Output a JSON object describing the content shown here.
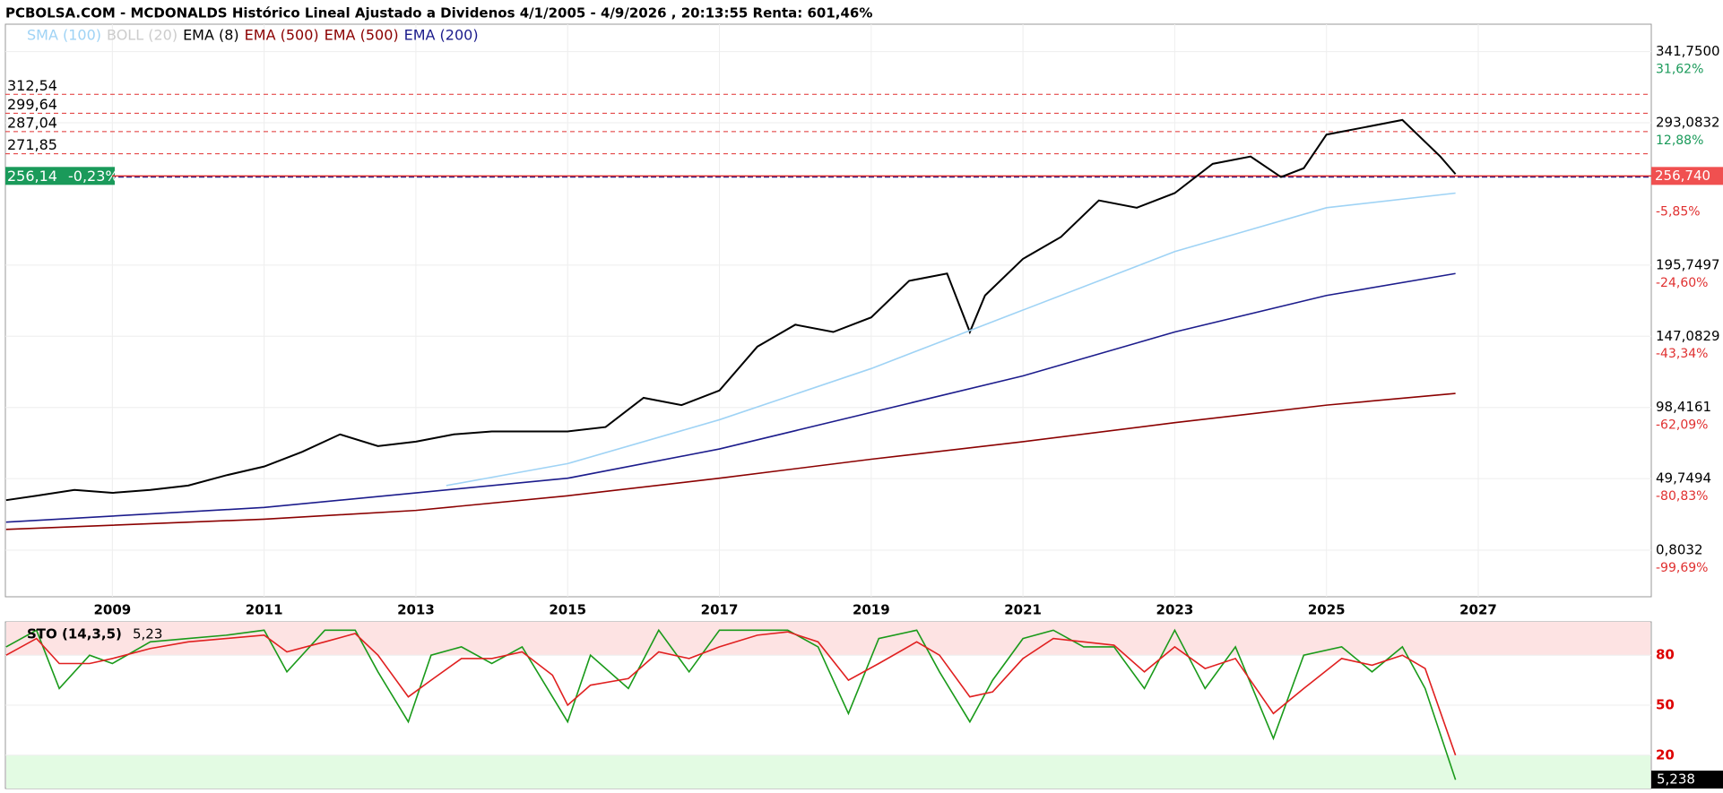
{
  "header": {
    "title": "PCBOLSA.COM - MCDONALDS Histórico Lineal Ajustado a Dividenos 4/1/2005 - 4/9/2026 , 20:13:55 Renta: 601,46%"
  },
  "chart_data": [
    {
      "type": "line",
      "legend": [
        {
          "name": "SMA (100)",
          "color": "#9fd3f5"
        },
        {
          "name": "BOLL (20)",
          "color": "#cccccc"
        },
        {
          "name": "EMA (8)",
          "color": "#000000"
        },
        {
          "name": "EMA (500)",
          "color": "#8b0000"
        },
        {
          "name": "EMA (500)",
          "color": "#8b0000"
        },
        {
          "name": "EMA (200)",
          "color": "#1c1c8c"
        }
      ],
      "xlim": [
        2007.59,
        2029.28
      ],
      "xticks": [
        2009,
        2011,
        2013,
        2015,
        2017,
        2019,
        2021,
        2023,
        2025,
        2027
      ],
      "ylim": [
        -31.06,
        360.5
      ],
      "yticks": [
        {
          "value": 341.75,
          "label": "341,7500"
        },
        {
          "value": 293.0832,
          "label": "293,0832"
        },
        {
          "value": 195.7497,
          "label": "195,7497"
        },
        {
          "value": 147.0829,
          "label": "147,0829"
        },
        {
          "value": 98.4161,
          "label": "98,4161"
        },
        {
          "value": 49.7494,
          "label": "49,7494"
        },
        {
          "value": 0.8032,
          "label": "0,8032"
        }
      ],
      "y2lim": [
        -111.96,
        38.84
      ],
      "y2ticks": [
        {
          "value": 31.62,
          "label": "31,62%"
        },
        {
          "value": 12.88,
          "label": "12,88%"
        },
        {
          "value": -5.85,
          "label": "-5,85%"
        },
        {
          "value": -24.6,
          "label": "-24,60%"
        },
        {
          "value": -43.34,
          "label": "-43,34%"
        },
        {
          "value": -62.09,
          "label": "-62,09%"
        },
        {
          "value": -80.83,
          "label": "-80,83%"
        },
        {
          "value": -99.69,
          "label": "-99,69%"
        }
      ],
      "levels": [
        {
          "value": 312.54,
          "label": "312,54"
        },
        {
          "value": 299.64,
          "label": "299,64"
        },
        {
          "value": 287.04,
          "label": "287,04"
        },
        {
          "value": 271.85,
          "label": "271,85"
        }
      ],
      "last_price": {
        "value": 256.14,
        "label": "256,14",
        "change": "-0,23%"
      },
      "last_right": {
        "value": 256.74,
        "label": "256,740"
      },
      "series": [
        {
          "legend": 2,
          "color": "#000000",
          "x": [
            2007.6,
            2008.0,
            2008.5,
            2009.0,
            2009.5,
            2010.0,
            2010.5,
            2011.0,
            2011.5,
            2012.0,
            2012.5,
            2013.0,
            2013.5,
            2014.0,
            2014.5,
            2015.0,
            2015.5,
            2016.0,
            2016.5,
            2017.0,
            2017.5,
            2018.0,
            2018.5,
            2019.0,
            2019.5,
            2020.0,
            2020.3,
            2020.5,
            2021.0,
            2021.5,
            2022.0,
            2022.5,
            2023.0,
            2023.5,
            2024.0,
            2024.4,
            2024.7,
            2025.0,
            2025.5,
            2026.0,
            2026.5,
            2026.7
          ],
          "values": [
            35,
            38,
            42,
            40,
            42,
            45,
            52,
            58,
            68,
            80,
            72,
            75,
            80,
            82,
            82,
            82,
            85,
            105,
            100,
            110,
            140,
            155,
            150,
            160,
            185,
            190,
            150,
            175,
            200,
            215,
            240,
            235,
            245,
            265,
            270,
            256,
            262,
            285,
            290,
            295,
            270,
            258
          ]
        },
        {
          "legend": 0,
          "color": "#9fd3f5",
          "x": [
            2013.4,
            2015,
            2017,
            2019,
            2021,
            2023,
            2025,
            2026.7
          ],
          "values": [
            45,
            60,
            90,
            125,
            165,
            205,
            235,
            245
          ]
        },
        {
          "legend": 5,
          "color": "#1c1c8c",
          "x": [
            2007.6,
            2011,
            2013,
            2015,
            2017,
            2019,
            2021,
            2023,
            2025,
            2026.7
          ],
          "values": [
            20,
            30,
            40,
            50,
            70,
            95,
            120,
            150,
            175,
            190
          ]
        },
        {
          "legend": 3,
          "color": "#8b0000",
          "x": [
            2007.6,
            2011,
            2013,
            2015,
            2017,
            2019,
            2021,
            2023,
            2025,
            2026.7
          ],
          "values": [
            15,
            22,
            28,
            38,
            50,
            63,
            75,
            88,
            100,
            108
          ]
        }
      ]
    },
    {
      "type": "line",
      "title": "STO (14,3,5)",
      "last_label": "5,23",
      "last_axis_label": "5,238",
      "xlim": [
        2007.59,
        2029.28
      ],
      "ylim": [
        0,
        100
      ],
      "yticks": [
        20,
        50,
        80
      ],
      "bands": [
        {
          "from": 80,
          "to": 100,
          "color": "#fde3e3"
        },
        {
          "from": 0,
          "to": 20,
          "color": "#e3fbe3"
        }
      ],
      "x": [
        2007.6,
        2008.0,
        2008.3,
        2008.7,
        2009.0,
        2009.5,
        2010.0,
        2010.5,
        2011.0,
        2011.3,
        2011.8,
        2012.2,
        2012.5,
        2012.9,
        2013.2,
        2013.6,
        2014.0,
        2014.4,
        2014.8,
        2015.0,
        2015.3,
        2015.8,
        2016.2,
        2016.6,
        2017.0,
        2017.5,
        2017.9,
        2018.3,
        2018.7,
        2019.1,
        2019.6,
        2019.9,
        2020.3,
        2020.6,
        2021.0,
        2021.4,
        2021.8,
        2022.2,
        2022.6,
        2023.0,
        2023.4,
        2023.8,
        2024.3,
        2024.7,
        2025.2,
        2025.6,
        2026.0,
        2026.3,
        2026.7
      ],
      "series": [
        {
          "color": "#1a9a1a",
          "values": [
            85,
            95,
            60,
            80,
            75,
            88,
            90,
            92,
            95,
            70,
            95,
            95,
            70,
            40,
            80,
            85,
            75,
            85,
            55,
            40,
            80,
            60,
            95,
            70,
            95,
            95,
            95,
            85,
            45,
            90,
            95,
            70,
            40,
            65,
            90,
            95,
            85,
            85,
            60,
            95,
            60,
            85,
            30,
            80,
            85,
            70,
            85,
            60,
            5.23
          ]
        },
        {
          "color": "#e02020",
          "values": [
            80,
            90,
            75,
            75,
            78,
            84,
            88,
            90,
            92,
            82,
            88,
            93,
            80,
            55,
            65,
            78,
            78,
            82,
            68,
            50,
            62,
            66,
            82,
            78,
            85,
            92,
            94,
            88,
            65,
            75,
            88,
            80,
            55,
            58,
            78,
            90,
            88,
            86,
            70,
            85,
            72,
            78,
            45,
            60,
            78,
            74,
            80,
            72,
            20
          ]
        }
      ]
    }
  ]
}
